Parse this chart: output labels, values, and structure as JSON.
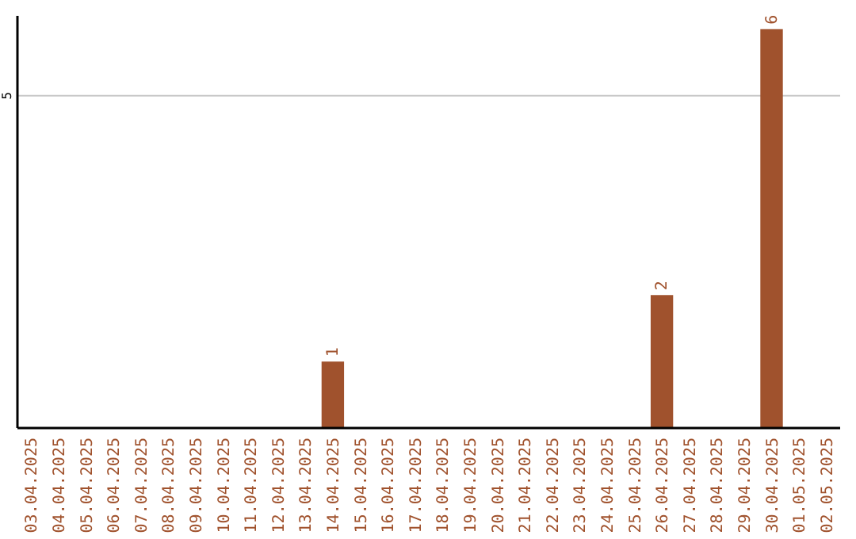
{
  "chart_data": {
    "type": "bar",
    "categories": [
      "03.04.2025",
      "04.04.2025",
      "05.04.2025",
      "06.04.2025",
      "07.04.2025",
      "08.04.2025",
      "09.04.2025",
      "10.04.2025",
      "11.04.2025",
      "12.04.2025",
      "13.04.2025",
      "14.04.2025",
      "15.04.2025",
      "16.04.2025",
      "17.04.2025",
      "18.04.2025",
      "19.04.2025",
      "20.04.2025",
      "21.04.2025",
      "22.04.2025",
      "23.04.2025",
      "24.04.2025",
      "25.04.2025",
      "26.04.2025",
      "27.04.2025",
      "28.04.2025",
      "29.04.2025",
      "30.04.2025",
      "01.05.2025",
      "02.05.2025"
    ],
    "values": [
      0,
      0,
      0,
      0,
      0,
      0,
      0,
      0,
      0,
      0,
      0,
      1,
      0,
      0,
      0,
      0,
      0,
      0,
      0,
      0,
      0,
      0,
      0,
      2,
      0,
      0,
      0,
      6,
      0,
      0
    ],
    "value_labels": [
      null,
      null,
      null,
      null,
      null,
      null,
      null,
      null,
      null,
      null,
      null,
      "1",
      null,
      null,
      null,
      null,
      null,
      null,
      null,
      null,
      null,
      null,
      null,
      "2",
      null,
      null,
      null,
      "6",
      null,
      null
    ],
    "color": "#a0522d",
    "ylim": [
      0,
      6.2
    ],
    "yticks": [
      5
    ],
    "grid": "y"
  }
}
